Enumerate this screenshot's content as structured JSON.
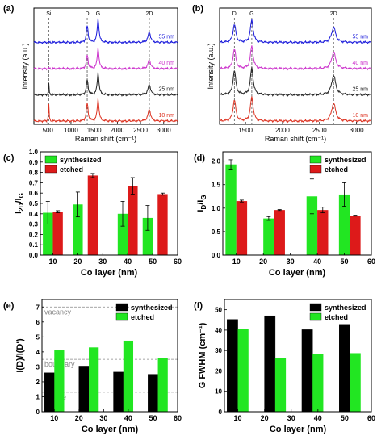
{
  "colors": {
    "green": "#22e622",
    "red": "#dd1a1a",
    "black": "#000000",
    "grid_dash": "#555555",
    "annot": "#888888"
  },
  "chart_data": [
    {
      "panel": "(a)",
      "type": "line",
      "xlabel": "Raman shift (cm⁻¹)",
      "ylabel": "Intensity (a.u.)",
      "xlim": [
        200,
        3300
      ],
      "xticks": [
        500,
        1000,
        1500,
        2000,
        2500,
        3000
      ],
      "peak_labels": [
        {
          "label": "Si",
          "x": 520
        },
        {
          "label": "D",
          "x": 1350
        },
        {
          "label": "G",
          "x": 1585
        },
        {
          "label": "2D",
          "x": 2690
        }
      ],
      "series": [
        {
          "name": "55 nm",
          "color": "#1a1adb",
          "peaks": [
            [
              1350,
              0.55
            ],
            [
              1585,
              0.8
            ],
            [
              2690,
              0.35
            ]
          ]
        },
        {
          "name": "40 nm",
          "color": "#cc33cc",
          "peaks": [
            [
              1350,
              0.45
            ],
            [
              1585,
              0.7
            ],
            [
              2690,
              0.3
            ]
          ]
        },
        {
          "name": "25 nm",
          "color": "#222222",
          "peaks": [
            [
              520,
              0.4
            ],
            [
              1350,
              0.5
            ],
            [
              1585,
              0.75
            ],
            [
              2690,
              0.35
            ]
          ]
        },
        {
          "name": "10 nm",
          "color": "#dd3322",
          "peaks": [
            [
              520,
              0.6
            ],
            [
              1350,
              0.6
            ],
            [
              1585,
              0.75
            ],
            [
              2690,
              0.4
            ]
          ]
        }
      ]
    },
    {
      "panel": "(b)",
      "type": "line",
      "xlabel": "Raman shift (cm⁻¹)",
      "ylabel": "Intensity (a.u.)",
      "xlim": [
        1150,
        3200
      ],
      "xticks": [
        1500,
        2000,
        2500,
        3000
      ],
      "peak_labels": [
        {
          "label": "D",
          "x": 1350
        },
        {
          "label": "G",
          "x": 1585
        },
        {
          "label": "2D",
          "x": 2690
        }
      ],
      "series": [
        {
          "name": "55 nm",
          "color": "#1a1adb",
          "peaks": [
            [
              1350,
              0.6
            ],
            [
              1585,
              0.75
            ],
            [
              2690,
              0.5
            ]
          ]
        },
        {
          "name": "40 nm",
          "color": "#cc33cc",
          "peaks": [
            [
              1350,
              0.65
            ],
            [
              1585,
              0.75
            ],
            [
              2690,
              0.55
            ]
          ]
        },
        {
          "name": "25 nm",
          "color": "#222222",
          "peaks": [
            [
              1350,
              0.8
            ],
            [
              1585,
              0.9
            ],
            [
              2690,
              0.65
            ]
          ]
        },
        {
          "name": "10 nm",
          "color": "#dd3322",
          "peaks": [
            [
              1350,
              0.7
            ],
            [
              1585,
              0.8
            ],
            [
              2690,
              0.6
            ]
          ]
        }
      ]
    },
    {
      "panel": "(c)",
      "type": "bar",
      "xlabel": "Co layer (nm)",
      "ylabel": "I2D/IG",
      "xlim": [
        5,
        60
      ],
      "xticks": [
        10,
        20,
        30,
        40,
        50,
        60
      ],
      "ylim": [
        0.0,
        1.0
      ],
      "yticks": [
        "0.0",
        "0.1",
        "0.2",
        "0.3",
        "0.4",
        "0.5",
        "0.6",
        "0.7",
        "0.8",
        "0.9",
        "1.0"
      ],
      "legend": "top-left",
      "bar_width": 4,
      "series": [
        {
          "name": "synthesized",
          "color": "#22e622",
          "x": [
            8,
            20,
            38,
            48
          ],
          "values": [
            0.41,
            0.49,
            0.4,
            0.36
          ],
          "errors": [
            0.11,
            0.12,
            0.12,
            0.12
          ]
        },
        {
          "name": "etched",
          "color": "#dd1a1a",
          "x": [
            12,
            26,
            42,
            54
          ],
          "values": [
            0.42,
            0.77,
            0.67,
            0.59
          ],
          "errors": [
            0.01,
            0.02,
            0.08,
            0.01
          ]
        }
      ]
    },
    {
      "panel": "(d)",
      "type": "bar",
      "xlabel": "Co layer (nm)",
      "ylabel": "ID/IG",
      "xlim": [
        5,
        60
      ],
      "xticks": [
        10,
        20,
        30,
        40,
        50,
        60
      ],
      "ylim": [
        0.0,
        2.2
      ],
      "yticks": [
        "0.0",
        "0.5",
        "1.0",
        "1.5",
        "2.0"
      ],
      "legend": "top-right",
      "bar_width": 4,
      "series": [
        {
          "name": "synthesized",
          "color": "#22e622",
          "x": [
            8,
            22,
            38,
            50
          ],
          "values": [
            1.93,
            0.78,
            1.25,
            1.29
          ],
          "errors": [
            0.1,
            0.04,
            0.37,
            0.25
          ]
        },
        {
          "name": "etched",
          "color": "#dd1a1a",
          "x": [
            12,
            26,
            42,
            54
          ],
          "values": [
            1.15,
            0.96,
            0.96,
            0.84
          ],
          "errors": [
            0.02,
            0.01,
            0.06,
            0.01
          ]
        }
      ]
    },
    {
      "panel": "(e)",
      "type": "bar",
      "xlabel": "Co layer (nm)",
      "ylabel": "I(D)/I(D')",
      "xlim": [
        5,
        60
      ],
      "xticks": [
        10,
        20,
        30,
        40,
        50,
        60
      ],
      "ylim": [
        0,
        7.5
      ],
      "yticks": [
        "0",
        "1",
        "2",
        "3",
        "4",
        "5",
        "6",
        "7"
      ],
      "legend": "top-right",
      "bar_width": 4,
      "annotations": [
        {
          "text": "vacancy",
          "y": 7.0
        },
        {
          "text": "boundary",
          "y": 3.5
        },
        {
          "text": "on-site",
          "y": 1.3
        }
      ],
      "series": [
        {
          "name": "synthesized",
          "color": "#000000",
          "x": [
            8,
            22,
            36,
            50
          ],
          "values": [
            2.6,
            3.05,
            2.65,
            2.5
          ]
        },
        {
          "name": "etched",
          "color": "#22e622",
          "x": [
            12,
            26,
            40,
            54
          ],
          "values": [
            4.1,
            4.3,
            4.75,
            3.6
          ]
        }
      ]
    },
    {
      "panel": "(f)",
      "type": "bar",
      "xlabel": "Co layer (nm)",
      "ylabel": "G FWHM (cm⁻¹)",
      "xlim": [
        5,
        60
      ],
      "xticks": [
        10,
        20,
        30,
        40,
        50,
        60
      ],
      "ylim": [
        0,
        55
      ],
      "yticks": [
        "0",
        "10",
        "20",
        "30",
        "40",
        "50"
      ],
      "legend": "top-right",
      "bar_width": 4,
      "series": [
        {
          "name": "synthesized",
          "color": "#000000",
          "x": [
            8,
            22,
            36,
            50
          ],
          "values": [
            45.2,
            47.0,
            40.2,
            42.8
          ]
        },
        {
          "name": "etched",
          "color": "#22e622",
          "x": [
            12,
            26,
            40,
            54
          ],
          "values": [
            40.7,
            26.5,
            28.3,
            28.7
          ]
        }
      ]
    }
  ]
}
